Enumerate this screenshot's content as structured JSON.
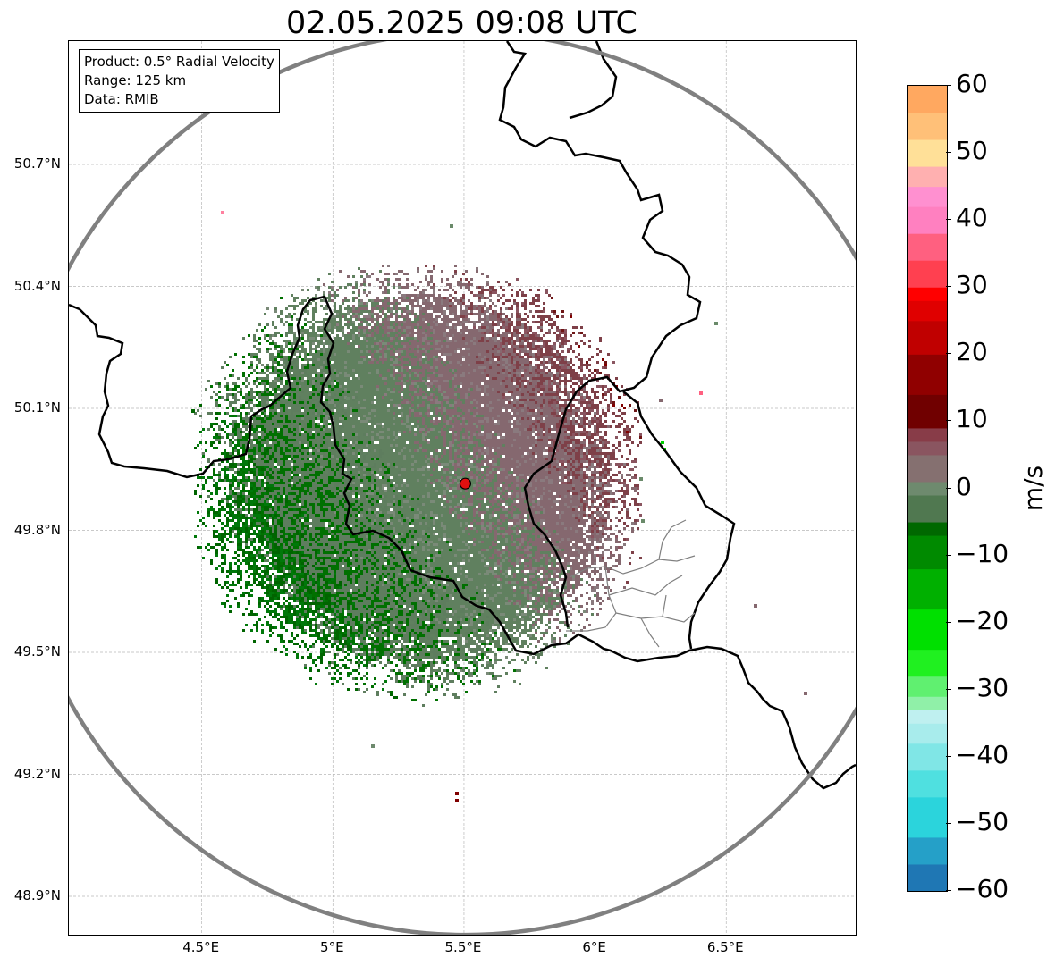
{
  "title": "02.05.2025 09:08 UTC",
  "info_box": {
    "product": "Product: 0.5° Radial Velocity",
    "range": "Range: 125 km",
    "data": "Data: RMIB"
  },
  "axes": {
    "lat_ticks": [
      "50.7°N",
      "50.4°N",
      "50.1°N",
      "49.8°N",
      "49.5°N",
      "49.2°N",
      "48.9°N"
    ],
    "lon_ticks": [
      "4.5°E",
      "5°E",
      "5.5°E",
      "6°E",
      "6.5°E"
    ],
    "lat_values": [
      50.7,
      50.4,
      50.1,
      49.8,
      49.5,
      49.2,
      48.9
    ],
    "lon_values": [
      4.5,
      5.0,
      5.5,
      6.0,
      6.5
    ],
    "lon_range": [
      4.0,
      7.0
    ],
    "lat_range": [
      48.8,
      51.0
    ],
    "grid": true
  },
  "radar": {
    "site_lon": 5.505,
    "site_lat": 49.915,
    "range_km": 125,
    "site_color": "#e01010",
    "range_ring_color": "#808080"
  },
  "colorbar": {
    "unit": "m/s",
    "min": -60,
    "max": 60,
    "tick_labels": [
      "60",
      "50",
      "40",
      "30",
      "20",
      "10",
      "0",
      "−10",
      "−20",
      "−30",
      "−40",
      "−50",
      "−60"
    ],
    "tick_values": [
      60,
      50,
      40,
      30,
      20,
      10,
      0,
      -10,
      -20,
      -30,
      -40,
      -50,
      -60
    ],
    "stops": [
      {
        "v": -60,
        "c": "#1f77b4"
      },
      {
        "v": -56,
        "c": "#25a0c8"
      },
      {
        "v": -52,
        "c": "#2bd4dc"
      },
      {
        "v": -46,
        "c": "#4fe0e0"
      },
      {
        "v": -42,
        "c": "#80e6e6"
      },
      {
        "v": -38,
        "c": "#a8ecec"
      },
      {
        "v": -35,
        "c": "#bff0f0"
      },
      {
        "v": -33,
        "c": "#90f0a8"
      },
      {
        "v": -31,
        "c": "#60f070"
      },
      {
        "v": -28,
        "c": "#20f020"
      },
      {
        "v": -24,
        "c": "#00e000"
      },
      {
        "v": -18,
        "c": "#00b000"
      },
      {
        "v": -12,
        "c": "#008a00"
      },
      {
        "v": -7,
        "c": "#006800"
      },
      {
        "v": -5,
        "c": "#507850"
      },
      {
        "v": -1,
        "c": "#6e8a6e"
      },
      {
        "v": 1,
        "c": "#857070"
      },
      {
        "v": 5,
        "c": "#8a5560"
      },
      {
        "v": 7,
        "c": "#883c48"
      },
      {
        "v": 9,
        "c": "#700000"
      },
      {
        "v": 14,
        "c": "#900000"
      },
      {
        "v": 20,
        "c": "#c00000"
      },
      {
        "v": 25,
        "c": "#e00000"
      },
      {
        "v": 28,
        "c": "#ff0000"
      },
      {
        "v": 30,
        "c": "#ff4050"
      },
      {
        "v": 34,
        "c": "#ff6080"
      },
      {
        "v": 38,
        "c": "#ff80c0"
      },
      {
        "v": 42,
        "c": "#ff90d0"
      },
      {
        "v": 45,
        "c": "#ffb0b0"
      },
      {
        "v": 48,
        "c": "#ffe098"
      },
      {
        "v": 52,
        "c": "#ffc078"
      },
      {
        "v": 56,
        "c": "#ffa860"
      },
      {
        "v": 60,
        "c": "#ff9050"
      }
    ]
  },
  "velocity_field": {
    "description_of_zones": [
      {
        "zone": "west",
        "velocity": -18,
        "color": "#006800"
      },
      {
        "zone": "southwest",
        "velocity": -12,
        "color": "#007000"
      },
      {
        "zone": "center-west",
        "velocity": -3,
        "color": "#5a7a5a"
      },
      {
        "zone": "center-east",
        "velocity": 3,
        "color": "#8a6a72"
      },
      {
        "zone": "northeast",
        "velocity": 8,
        "color": "#7e4048"
      },
      {
        "zone": "north",
        "velocity": 11,
        "color": "#6a1010"
      }
    ]
  }
}
